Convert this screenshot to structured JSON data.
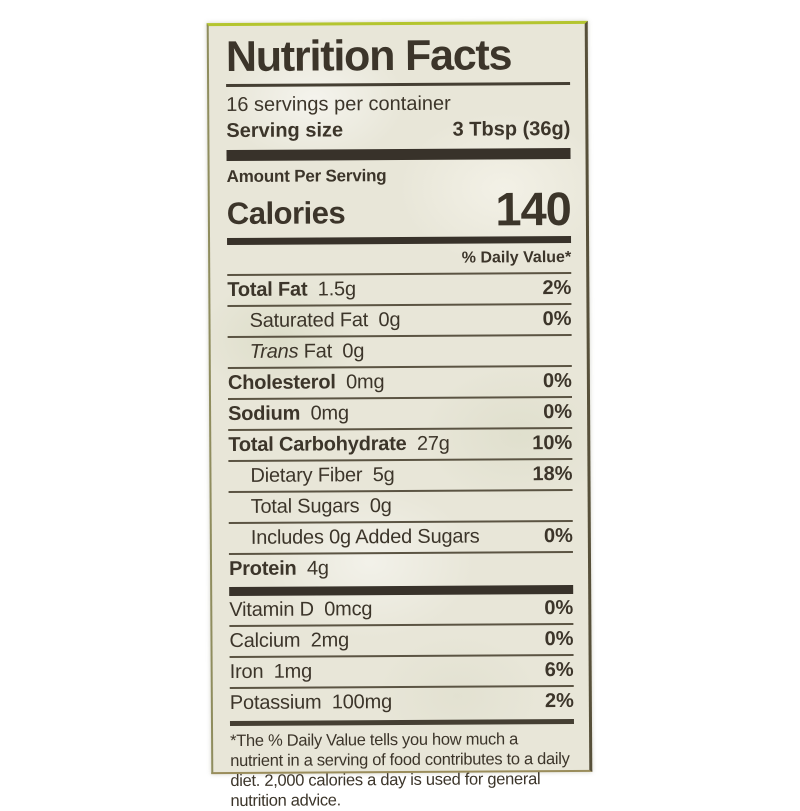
{
  "colors": {
    "page_background": "#ffffff",
    "label_background": "#e8e6d8",
    "text": "#3c352a",
    "edge_highlight": "#b4c52f"
  },
  "label": {
    "title": "Nutrition Facts",
    "servings_per_container": "16 servings per container",
    "serving_size_label": "Serving size",
    "serving_size_value": "3 Tbsp (36g)",
    "amount_per_serving": "Amount Per Serving",
    "calories_label": "Calories",
    "calories_value": "140",
    "daily_value_header": "% Daily Value*",
    "nutrients": [
      {
        "name": "Total Fat",
        "amount": "1.5g",
        "dv": "2%"
      },
      {
        "name": "Saturated Fat",
        "amount": "0g",
        "dv": "0%"
      },
      {
        "name_italic": "Trans",
        "name": " Fat",
        "amount": "0g",
        "dv": ""
      },
      {
        "name": "Cholesterol",
        "amount": "0mg",
        "dv": "0%"
      },
      {
        "name": "Sodium",
        "amount": "0mg",
        "dv": "0%"
      },
      {
        "name": "Total Carbohydrate",
        "amount": "27g",
        "dv": "10%"
      },
      {
        "name": "Dietary Fiber",
        "amount": "5g",
        "dv": "18%"
      },
      {
        "name": "Total Sugars",
        "amount": "0g",
        "dv": ""
      },
      {
        "name": "Includes 0g Added Sugars",
        "amount": "",
        "dv": "0%"
      },
      {
        "name": "Protein",
        "amount": "4g",
        "dv": ""
      }
    ],
    "vitamins": [
      {
        "name": "Vitamin D",
        "amount": "0mcg",
        "dv": "0%"
      },
      {
        "name": "Calcium",
        "amount": "2mg",
        "dv": "0%"
      },
      {
        "name": "Iron",
        "amount": "1mg",
        "dv": "6%"
      },
      {
        "name": "Potassium",
        "amount": "100mg",
        "dv": "2%"
      }
    ],
    "footnote": "*The % Daily Value tells you how much a nutrient in a serving of food contributes to a daily diet. 2,000 calories a day is used for general nutrition advice."
  }
}
